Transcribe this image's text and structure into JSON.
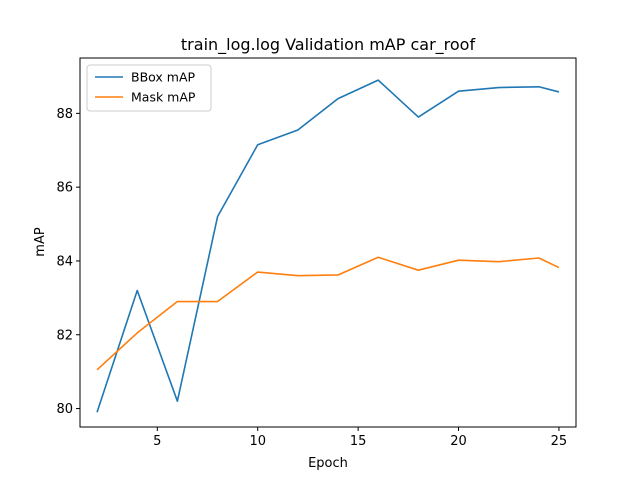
{
  "chart_data": {
    "type": "line",
    "title": "train_log.log Validation mAP car_roof",
    "xlabel": "Epoch",
    "ylabel": "mAP",
    "xlim": [
      1.15,
      25.85
    ],
    "ylim": [
      79.5,
      89.5
    ],
    "x_ticks": [
      5,
      10,
      15,
      20,
      25
    ],
    "y_ticks": [
      80,
      82,
      84,
      86,
      88
    ],
    "x": [
      2,
      4,
      6,
      8,
      10,
      12,
      14,
      16,
      18,
      20,
      22,
      24,
      25
    ],
    "series": [
      {
        "name": "BBox mAP",
        "color": "#1f77b4",
        "values": [
          79.9,
          83.2,
          80.2,
          85.2,
          87.15,
          87.55,
          88.4,
          88.9,
          87.9,
          88.6,
          88.7,
          88.72,
          88.58
        ]
      },
      {
        "name": "Mask mAP",
        "color": "#ff7f0e",
        "values": [
          81.05,
          82.05,
          82.9,
          82.9,
          83.7,
          83.6,
          83.62,
          84.1,
          83.75,
          84.02,
          83.98,
          84.08,
          83.82
        ]
      }
    ],
    "grid": false,
    "legend_position": "top-left"
  }
}
